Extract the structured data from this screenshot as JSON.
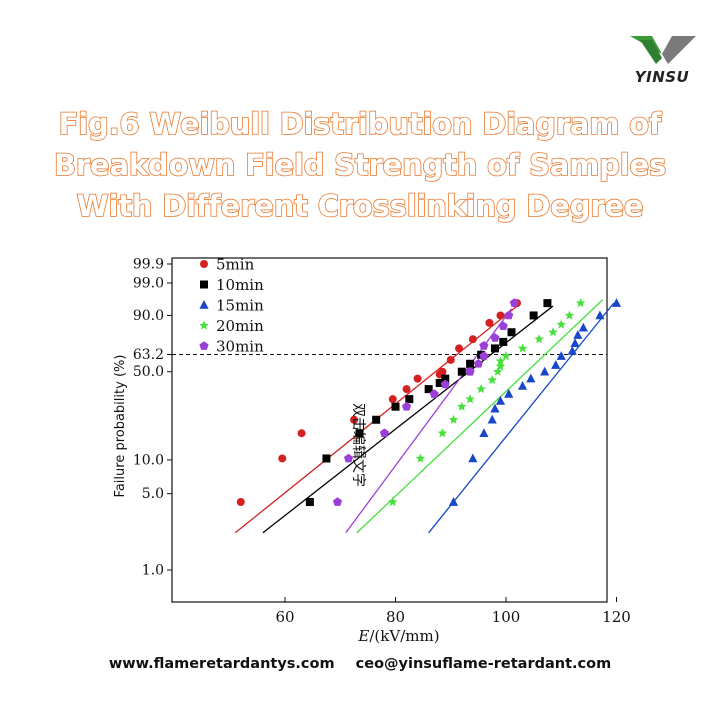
{
  "brand": {
    "name": "YINSU",
    "colors": {
      "green": "#3a9a3a",
      "gray": "#7a7a7a",
      "accent": "#e8792e"
    }
  },
  "title_lines": [
    "Fig.6 Weibull Distribution Diagram of",
    "Breakdown Field Strength of Samples",
    "With Different Crosslinking Degree"
  ],
  "footer": {
    "website": "www.flameretardantys.com",
    "email": "ceo@yinsuflame-retardant.com"
  },
  "chart_data": {
    "type": "scatter",
    "xlabel": "E/(kV/mm)",
    "ylabel": "Failure probability (%)",
    "x_ticks": [
      60,
      80,
      100,
      120
    ],
    "y_ticks": [
      1.0,
      5.0,
      10.0,
      50.0,
      63.2,
      90.0,
      99.0,
      99.9
    ],
    "y_tick_labels": [
      "1.0",
      "5.0",
      "10.0",
      "50.0",
      "63.2",
      "90.0",
      "99.0",
      "99.9"
    ],
    "reference_line": {
      "y": 63.2,
      "style": "dashed"
    },
    "annotation": "双击编辑文字",
    "legend_position": "top-left",
    "series": [
      {
        "name": "5min",
        "color": "#d42020",
        "marker": "circle",
        "points": [
          [
            52,
            4.2
          ],
          [
            59.5,
            10.3
          ],
          [
            63,
            17
          ],
          [
            72.5,
            22
          ],
          [
            79.5,
            32
          ],
          [
            82,
            38
          ],
          [
            84,
            45
          ],
          [
            88,
            48
          ],
          [
            88.5,
            50
          ],
          [
            90,
            59
          ],
          [
            91.5,
            68
          ],
          [
            94,
            75
          ],
          [
            97,
            86
          ],
          [
            99,
            90
          ],
          [
            102,
            95
          ]
        ],
        "fit": [
          [
            51,
            2.2
          ],
          [
            102,
            94
          ]
        ]
      },
      {
        "name": "10min",
        "color": "#000000",
        "marker": "square",
        "points": [
          [
            64.5,
            4.2
          ],
          [
            67.5,
            10.3
          ],
          [
            73.5,
            17
          ],
          [
            76.5,
            22
          ],
          [
            80,
            28
          ],
          [
            82.5,
            32
          ],
          [
            86,
            38
          ],
          [
            88,
            42
          ],
          [
            89,
            45
          ],
          [
            92,
            50
          ],
          [
            93.5,
            56
          ],
          [
            95.5,
            63
          ],
          [
            98,
            68
          ],
          [
            99.5,
            73
          ],
          [
            101,
            80
          ],
          [
            105,
            90
          ],
          [
            107.5,
            95
          ]
        ],
        "fit": [
          [
            56,
            2.2
          ],
          [
            108.5,
            94
          ]
        ]
      },
      {
        "name": "15min",
        "color": "#1848c8",
        "marker": "triangle",
        "points": [
          [
            90.5,
            4.2
          ],
          [
            94,
            10.3
          ],
          [
            96,
            17
          ],
          [
            97.5,
            22
          ],
          [
            98,
            27
          ],
          [
            99,
            31
          ],
          [
            100.5,
            35
          ],
          [
            103,
            40
          ],
          [
            104.5,
            45
          ],
          [
            107,
            50
          ],
          [
            109,
            55
          ],
          [
            110,
            62
          ],
          [
            112,
            66
          ],
          [
            112.5,
            72
          ],
          [
            113,
            78
          ],
          [
            114,
            83
          ],
          [
            117,
            90
          ],
          [
            120,
            95
          ]
        ],
        "fit": [
          [
            86,
            2.2
          ],
          [
            119.5,
            95
          ]
        ]
      },
      {
        "name": "20min",
        "color": "#46e03a",
        "marker": "star",
        "points": [
          [
            79.5,
            4.2
          ],
          [
            84.5,
            10.3
          ],
          [
            88.5,
            17
          ],
          [
            90.5,
            22
          ],
          [
            92,
            28
          ],
          [
            93.5,
            32
          ],
          [
            95.5,
            38
          ],
          [
            97.5,
            44
          ],
          [
            98.5,
            50
          ],
          [
            99,
            54
          ],
          [
            99,
            58
          ],
          [
            100,
            62
          ],
          [
            103,
            68
          ],
          [
            106,
            75
          ],
          [
            108.5,
            80
          ],
          [
            110,
            85
          ],
          [
            111.5,
            90
          ],
          [
            113.5,
            95
          ]
        ],
        "fit": [
          [
            73,
            2.2
          ],
          [
            117.5,
            96
          ]
        ]
      },
      {
        "name": "30min",
        "color": "#9a40d8",
        "marker": "pentagon",
        "points": [
          [
            69.5,
            4.2
          ],
          [
            71.5,
            10.3
          ],
          [
            78,
            17
          ],
          [
            82,
            28
          ],
          [
            87,
            35
          ],
          [
            89,
            41
          ],
          [
            93.5,
            50
          ],
          [
            95,
            56
          ],
          [
            96,
            62
          ],
          [
            96,
            70
          ],
          [
            98,
            76
          ],
          [
            99.5,
            84
          ],
          [
            100.5,
            90
          ],
          [
            101.5,
            95
          ]
        ],
        "fit": [
          [
            71,
            2.2
          ],
          [
            101,
            93
          ]
        ]
      }
    ]
  }
}
